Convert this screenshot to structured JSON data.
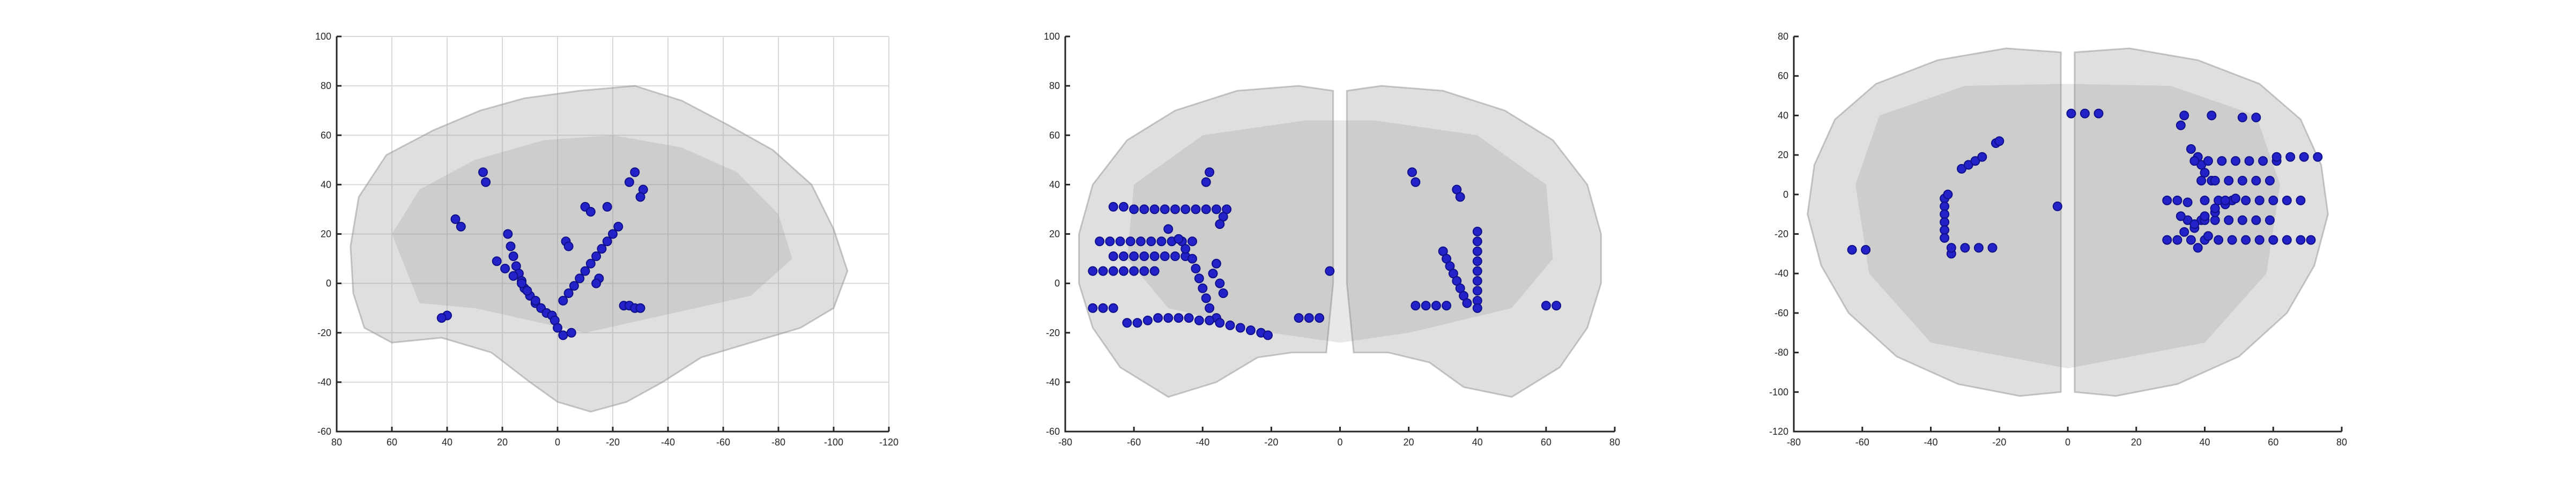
{
  "chart_data": [
    {
      "type": "scatter",
      "title": "",
      "xlabel": "",
      "ylabel": "",
      "xlim": [
        80,
        -120
      ],
      "ylim": [
        -60,
        100
      ],
      "xticks": [
        80,
        60,
        40,
        20,
        0,
        -20,
        -40,
        -60,
        -80,
        -100,
        -120
      ],
      "yticks": [
        100,
        80,
        60,
        40,
        20,
        0,
        -20,
        -40,
        -60
      ],
      "grid": true,
      "colors": {
        "electrode": "#2222c8",
        "brain": "#9a9a9a"
      },
      "series": [
        {
          "values": [
            [
              27,
              45
            ],
            [
              26,
              41
            ],
            [
              37,
              26
            ],
            [
              35,
              23
            ],
            [
              40,
              -13
            ],
            [
              42,
              -14
            ],
            [
              18,
              20
            ],
            [
              17,
              15
            ],
            [
              16,
              11
            ],
            [
              15,
              7
            ],
            [
              14,
              4
            ],
            [
              13,
              1
            ],
            [
              12,
              -2
            ],
            [
              10,
              -5
            ],
            [
              8,
              -8
            ],
            [
              6,
              -10
            ],
            [
              4,
              -12
            ],
            [
              22,
              9
            ],
            [
              19,
              6
            ],
            [
              16,
              3
            ],
            [
              13,
              0
            ],
            [
              11,
              -3
            ],
            [
              8,
              -7
            ],
            [
              2,
              -13
            ],
            [
              1,
              -15
            ],
            [
              0,
              -18
            ],
            [
              -2,
              -21
            ],
            [
              -5,
              -20
            ],
            [
              -3,
              17
            ],
            [
              -4,
              15
            ],
            [
              -10,
              31
            ],
            [
              -12,
              29
            ],
            [
              -18,
              31
            ],
            [
              -22,
              23
            ],
            [
              -20,
              20
            ],
            [
              -18,
              17
            ],
            [
              -16,
              14
            ],
            [
              -14,
              11
            ],
            [
              -12,
              8
            ],
            [
              -10,
              5
            ],
            [
              -8,
              2
            ],
            [
              -6,
              -1
            ],
            [
              -4,
              -4
            ],
            [
              -2,
              -7
            ],
            [
              -15,
              2
            ],
            [
              -14,
              0
            ],
            [
              -28,
              45
            ],
            [
              -26,
              41
            ],
            [
              -31,
              38
            ],
            [
              -30,
              35
            ],
            [
              -24,
              -9
            ],
            [
              -26,
              -9
            ],
            [
              -28,
              -10
            ],
            [
              -30,
              -10
            ]
          ]
        }
      ]
    },
    {
      "type": "scatter",
      "title": "",
      "xlabel": "",
      "ylabel": "",
      "xlim": [
        -80,
        80
      ],
      "ylim": [
        -60,
        100
      ],
      "xticks": [
        -80,
        -60,
        -40,
        -20,
        0,
        20,
        40,
        60,
        80
      ],
      "yticks": [
        100,
        80,
        60,
        40,
        20,
        0,
        -20,
        -40,
        -60
      ],
      "grid": false,
      "series": [
        {
          "values": [
            [
              -66,
              31
            ],
            [
              -63,
              31
            ],
            [
              -60,
              30
            ],
            [
              -57,
              30
            ],
            [
              -54,
              30
            ],
            [
              -51,
              30
            ],
            [
              -48,
              30
            ],
            [
              -45,
              30
            ],
            [
              -42,
              30
            ],
            [
              -39,
              30
            ],
            [
              -36,
              30
            ],
            [
              -33,
              30
            ],
            [
              -34,
              27
            ],
            [
              -35,
              24
            ],
            [
              -38,
              45
            ],
            [
              -39,
              41
            ],
            [
              -70,
              17
            ],
            [
              -67,
              17
            ],
            [
              -64,
              17
            ],
            [
              -61,
              17
            ],
            [
              -58,
              17
            ],
            [
              -55,
              17
            ],
            [
              -52,
              17
            ],
            [
              -49,
              17
            ],
            [
              -46,
              17
            ],
            [
              -43,
              17
            ],
            [
              -66,
              11
            ],
            [
              -63,
              11
            ],
            [
              -60,
              11
            ],
            [
              -57,
              11
            ],
            [
              -54,
              11
            ],
            [
              -51,
              11
            ],
            [
              -48,
              11
            ],
            [
              -45,
              11
            ],
            [
              -72,
              5
            ],
            [
              -69,
              5
            ],
            [
              -66,
              5
            ],
            [
              -63,
              5
            ],
            [
              -60,
              5
            ],
            [
              -57,
              5
            ],
            [
              -54,
              5
            ],
            [
              -50,
              22
            ],
            [
              -47,
              18
            ],
            [
              -45,
              14
            ],
            [
              -43,
              10
            ],
            [
              -42,
              6
            ],
            [
              -41,
              2
            ],
            [
              -40,
              -2
            ],
            [
              -39,
              -6
            ],
            [
              -38,
              -10
            ],
            [
              -36,
              -14
            ],
            [
              -36,
              8
            ],
            [
              -37,
              4
            ],
            [
              -35,
              0
            ],
            [
              -34,
              -4
            ],
            [
              -72,
              -10
            ],
            [
              -69,
              -10
            ],
            [
              -66,
              -10
            ],
            [
              -62,
              -16
            ],
            [
              -59,
              -16
            ],
            [
              -56,
              -15
            ],
            [
              -53,
              -14
            ],
            [
              -50,
              -14
            ],
            [
              -47,
              -14
            ],
            [
              -44,
              -14
            ],
            [
              -41,
              -15
            ],
            [
              -38,
              -15
            ],
            [
              -35,
              -16
            ],
            [
              -32,
              -17
            ],
            [
              -29,
              -18
            ],
            [
              -26,
              -19
            ],
            [
              -23,
              -20
            ],
            [
              -21,
              -21
            ],
            [
              -12,
              -14
            ],
            [
              -9,
              -14
            ],
            [
              -6,
              -14
            ],
            [
              -3,
              5
            ],
            [
              21,
              45
            ],
            [
              22,
              41
            ],
            [
              34,
              38
            ],
            [
              35,
              35
            ],
            [
              30,
              13
            ],
            [
              31,
              10
            ],
            [
              32,
              7
            ],
            [
              33,
              4
            ],
            [
              34,
              1
            ],
            [
              35,
              -2
            ],
            [
              36,
              -5
            ],
            [
              37,
              -8
            ],
            [
              22,
              -9
            ],
            [
              25,
              -9
            ],
            [
              28,
              -9
            ],
            [
              31,
              -9
            ],
            [
              40,
              21
            ],
            [
              40,
              17
            ],
            [
              40,
              13
            ],
            [
              40,
              9
            ],
            [
              40,
              5
            ],
            [
              40,
              1
            ],
            [
              40,
              -3
            ],
            [
              40,
              -7
            ],
            [
              40,
              -10
            ],
            [
              60,
              -9
            ],
            [
              63,
              -9
            ]
          ]
        }
      ]
    },
    {
      "type": "scatter",
      "title": "",
      "xlabel": "",
      "ylabel": "",
      "xlim": [
        -80,
        80
      ],
      "ylim": [
        -120,
        80
      ],
      "xticks": [
        -80,
        -60,
        -40,
        -20,
        0,
        20,
        40,
        60,
        80
      ],
      "yticks": [
        80,
        60,
        40,
        20,
        0,
        -20,
        -40,
        -60,
        -80,
        -100,
        -120
      ],
      "grid": false,
      "series": [
        {
          "values": [
            [
              -63,
              -28
            ],
            [
              -59,
              -28
            ],
            [
              -36,
              -2
            ],
            [
              -36,
              -6
            ],
            [
              -36,
              -10
            ],
            [
              -36,
              -14
            ],
            [
              -36,
              -18
            ],
            [
              -36,
              -22
            ],
            [
              -35,
              0
            ],
            [
              -34,
              -30
            ],
            [
              -34,
              -27
            ],
            [
              -30,
              -27
            ],
            [
              -26,
              -27
            ],
            [
              -22,
              -27
            ],
            [
              -31,
              13
            ],
            [
              -29,
              15
            ],
            [
              -27,
              17
            ],
            [
              -25,
              19
            ],
            [
              -21,
              26
            ],
            [
              -20,
              27
            ],
            [
              1,
              41
            ],
            [
              5,
              41
            ],
            [
              9,
              41
            ],
            [
              -3,
              -6
            ],
            [
              34,
              40
            ],
            [
              33,
              35
            ],
            [
              42,
              40
            ],
            [
              51,
              39
            ],
            [
              55,
              39
            ],
            [
              36,
              23
            ],
            [
              38,
              19
            ],
            [
              39,
              15
            ],
            [
              40,
              11
            ],
            [
              42,
              7
            ],
            [
              37,
              17
            ],
            [
              41,
              17
            ],
            [
              45,
              17
            ],
            [
              49,
              17
            ],
            [
              53,
              17
            ],
            [
              57,
              17
            ],
            [
              61,
              17
            ],
            [
              39,
              7
            ],
            [
              43,
              7
            ],
            [
              47,
              7
            ],
            [
              51,
              7
            ],
            [
              55,
              7
            ],
            [
              59,
              7
            ],
            [
              61,
              19
            ],
            [
              65,
              19
            ],
            [
              69,
              19
            ],
            [
              73,
              19
            ],
            [
              29,
              -3
            ],
            [
              32,
              -3
            ],
            [
              35,
              -4
            ],
            [
              40,
              -3
            ],
            [
              44,
              -3
            ],
            [
              48,
              -3
            ],
            [
              52,
              -3
            ],
            [
              56,
              -3
            ],
            [
              60,
              -3
            ],
            [
              64,
              -3
            ],
            [
              68,
              -3
            ],
            [
              35,
              -13
            ],
            [
              39,
              -13
            ],
            [
              43,
              -13
            ],
            [
              47,
              -13
            ],
            [
              51,
              -13
            ],
            [
              55,
              -13
            ],
            [
              59,
              -13
            ],
            [
              33,
              -11
            ],
            [
              37,
              -17
            ],
            [
              40,
              -13
            ],
            [
              43,
              -9
            ],
            [
              46,
              -5
            ],
            [
              49,
              -2
            ],
            [
              34,
              -19
            ],
            [
              37,
              -15
            ],
            [
              40,
              -11
            ],
            [
              43,
              -7
            ],
            [
              46,
              -3
            ],
            [
              29,
              -23
            ],
            [
              32,
              -23
            ],
            [
              36,
              -23
            ],
            [
              40,
              -23
            ],
            [
              44,
              -23
            ],
            [
              48,
              -23
            ],
            [
              52,
              -23
            ],
            [
              56,
              -23
            ],
            [
              60,
              -23
            ],
            [
              64,
              -23
            ],
            [
              68,
              -23
            ],
            [
              71,
              -23
            ],
            [
              38,
              -27
            ],
            [
              41,
              -21
            ]
          ]
        }
      ]
    }
  ]
}
